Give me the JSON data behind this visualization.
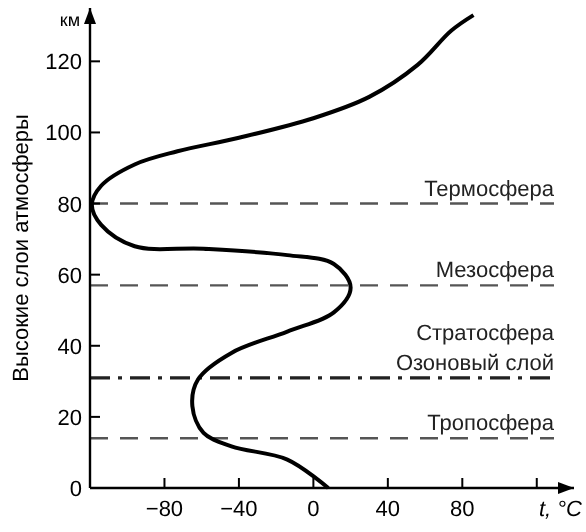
{
  "chart_data": {
    "type": "line",
    "ylabel": "Высокие слои атмосферы",
    "xlabel": "t, °C",
    "annotations": [
      "км",
      "Стратосфера"
    ],
    "series": [
      {
        "color": "#000000",
        "x": [
          8,
          -14,
          -44,
          -59,
          -65,
          -62,
          -44,
          -14,
          11,
          20,
          11,
          -14,
          -59,
          -96,
          -114,
          -119,
          -114,
          -96,
          -73,
          -40,
          0,
          30,
          56,
          74,
          86
        ],
        "values": [
          0,
          8,
          11.7,
          15.5,
          23,
          30.5,
          38,
          44,
          49.4,
          56.4,
          63,
          65.5,
          67.3,
          68,
          74,
          79.6,
          85,
          91,
          94.7,
          98.5,
          104,
          110,
          119,
          128.6,
          133
        ]
      }
    ],
    "xlim": [
      -120,
      140
    ],
    "xticks": [
      -80,
      -40,
      0,
      40,
      80,
      {
        "value": 120,
        "label": null
      }
    ],
    "ylim": [
      0,
      135
    ],
    "yticks": [
      0,
      20,
      40,
      60,
      80,
      100,
      120
    ],
    "ref_lines": [
      {
        "axis": "y",
        "value": 80,
        "label": "Термосфера",
        "line_style": "dashed",
        "color": "#555555"
      },
      {
        "axis": "y",
        "value": 57,
        "label": "Мезосфера",
        "line_style": "dashed",
        "color": "#555555"
      },
      {
        "axis": "y",
        "value": 31,
        "label": "Озоновый слой",
        "line_style": "dashdot",
        "color": "#222222"
      },
      {
        "axis": "y",
        "value": 14,
        "label": "Тропосфера",
        "line_style": "dashed",
        "color": "#555555"
      }
    ],
    "grid": false,
    "marker": "none",
    "line_style": "solid"
  }
}
